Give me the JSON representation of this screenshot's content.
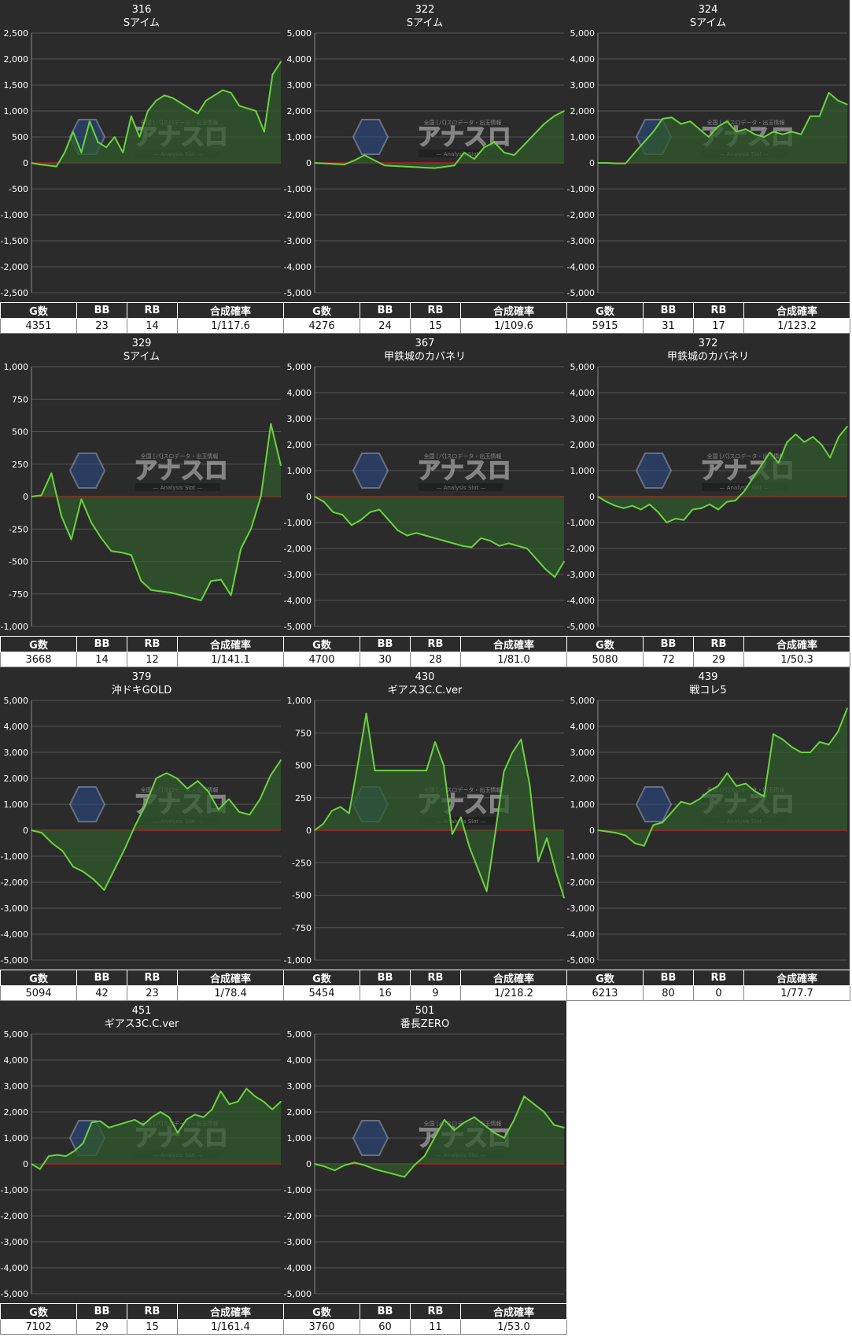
{
  "colors": {
    "background": "#2b2b2b",
    "grid": "#555555",
    "zero_line": "#cc2222",
    "series_line": "#6ad33e",
    "fill": "#2f5a2c"
  },
  "watermark": {
    "icon": "hexagon-logo-icon",
    "text": "アナスロ",
    "sub": "— Analysis Slot —",
    "tagline": "全国 [パ]スロデータ・出玉情報"
  },
  "stats_headers": [
    "G数",
    "BB",
    "RB",
    "合成確率"
  ],
  "machines": [
    {
      "number": "316",
      "name": "Sアイム",
      "games": "4351",
      "bb": "23",
      "rb": "14",
      "rate": "1/117.6",
      "chart_data": {
        "type": "area",
        "ylim": [
          -2500,
          2500
        ],
        "yticks": [
          2500,
          2000,
          1500,
          1000,
          500,
          0,
          -500,
          -1000,
          -1500,
          -2000,
          -2500
        ],
        "tick_labels": [
          "2,500",
          "2,000",
          "1,500",
          "1,000",
          "500",
          "0",
          "-500",
          "-1,000",
          "-1,500",
          "-2,000",
          "-2,500"
        ],
        "y": [
          0,
          -30,
          -50,
          -70,
          200,
          600,
          200,
          800,
          400,
          300,
          500,
          200,
          900,
          500,
          1000,
          1200,
          1300,
          1250,
          1150,
          1050,
          950,
          1200,
          1300,
          1400,
          1350,
          1100,
          1050,
          1000,
          600,
          1700,
          1950
        ]
      }
    },
    {
      "number": "322",
      "name": "Sアイム",
      "games": "4276",
      "bb": "24",
      "rb": "15",
      "rate": "1/109.6",
      "chart_data": {
        "type": "area",
        "ylim": [
          -5000,
          5000
        ],
        "yticks": [
          5000,
          4000,
          3000,
          2000,
          1000,
          0,
          -1000,
          -2000,
          -3000,
          -4000,
          -5000
        ],
        "tick_labels": [
          "5,000",
          "4,000",
          "3,000",
          "2,000",
          "1,000",
          "0",
          "-1,000",
          "-2,000",
          "-3,000",
          "-4,000",
          "-5,000"
        ],
        "y": [
          0,
          -20,
          -40,
          -60,
          100,
          300,
          100,
          -100,
          -120,
          -140,
          -160,
          -180,
          -200,
          -150,
          -100,
          400,
          150,
          600,
          800,
          400,
          300,
          700,
          1100,
          1500,
          1800,
          2000
        ]
      }
    },
    {
      "number": "324",
      "name": "Sアイム",
      "games": "5915",
      "bb": "31",
      "rb": "17",
      "rate": "1/123.2",
      "chart_data": {
        "type": "area",
        "ylim": [
          -5000,
          5000
        ],
        "yticks": [
          5000,
          4000,
          3000,
          2000,
          1000,
          0,
          -1000,
          -2000,
          -3000,
          -4000,
          -5000
        ],
        "tick_labels": [
          "5,000",
          "4,000",
          "3,000",
          "2,000",
          "1,000",
          "0",
          "-1,000",
          "-2,000",
          "-3,000",
          "-4,000",
          "-5,000"
        ],
        "y": [
          0,
          0,
          -20,
          -20,
          400,
          800,
          1200,
          1700,
          1750,
          1500,
          1600,
          1300,
          1000,
          1400,
          1600,
          1200,
          1300,
          1100,
          1000,
          1200,
          1100,
          1200,
          1100,
          1800,
          1800,
          2700,
          2400,
          2250
        ]
      }
    },
    {
      "number": "329",
      "name": "Sアイム",
      "games": "3668",
      "bb": "14",
      "rb": "12",
      "rate": "1/141.1",
      "chart_data": {
        "type": "area",
        "ylim": [
          -1000,
          1000
        ],
        "yticks": [
          1000,
          750,
          500,
          250,
          0,
          -250,
          -500,
          -750,
          -1000
        ],
        "tick_labels": [
          "1,000",
          "750",
          "500",
          "250",
          "0",
          "-250",
          "-500",
          "-750",
          "-1,000"
        ],
        "y": [
          0,
          10,
          180,
          -150,
          -330,
          -20,
          -200,
          -320,
          -420,
          -430,
          -450,
          -650,
          -720,
          -730,
          -740,
          -760,
          -780,
          -800,
          -650,
          -640,
          -760,
          -400,
          -250,
          0,
          560,
          240
        ]
      }
    },
    {
      "number": "367",
      "name": "甲鉄城のカバネリ",
      "games": "4700",
      "bb": "30",
      "rb": "28",
      "rate": "1/81.0",
      "chart_data": {
        "type": "area",
        "ylim": [
          -5000,
          5000
        ],
        "yticks": [
          5000,
          4000,
          3000,
          2000,
          1000,
          0,
          -1000,
          -2000,
          -3000,
          -4000,
          -5000
        ],
        "tick_labels": [
          "5,000",
          "4,000",
          "3,000",
          "2,000",
          "1,000",
          "0",
          "-1,000",
          "-2,000",
          "-3,000",
          "-4,000",
          "-5,000"
        ],
        "y": [
          0,
          -200,
          -600,
          -700,
          -1100,
          -900,
          -600,
          -500,
          -900,
          -1300,
          -1500,
          -1400,
          -1500,
          -1600,
          -1700,
          -1800,
          -1900,
          -1950,
          -1600,
          -1700,
          -1900,
          -1800,
          -1900,
          -2000,
          -2400,
          -2800,
          -3100,
          -2500
        ]
      }
    },
    {
      "number": "372",
      "name": "甲鉄城のカバネリ",
      "games": "5080",
      "bb": "72",
      "rb": "29",
      "rate": "1/50.3",
      "chart_data": {
        "type": "area",
        "ylim": [
          -5000,
          5000
        ],
        "yticks": [
          5000,
          4000,
          3000,
          2000,
          1000,
          0,
          -1000,
          -2000,
          -3000,
          -4000,
          -5000
        ],
        "tick_labels": [
          "5,000",
          "4,000",
          "3,000",
          "2,000",
          "1,000",
          "0",
          "-1,000",
          "-2,000",
          "-3,000",
          "-4,000",
          "-5,000"
        ],
        "y": [
          0,
          -200,
          -350,
          -450,
          -350,
          -500,
          -300,
          -600,
          -1000,
          -850,
          -900,
          -500,
          -450,
          -300,
          -500,
          -200,
          -150,
          200,
          700,
          1200,
          1700,
          1300,
          2100,
          2400,
          2100,
          2300,
          2000,
          1500,
          2300,
          2700
        ]
      }
    },
    {
      "number": "379",
      "name": "沖ドキGOLD",
      "games": "5094",
      "bb": "42",
      "rb": "23",
      "rate": "1/78.4",
      "chart_data": {
        "type": "area",
        "ylim": [
          -5000,
          5000
        ],
        "yticks": [
          5000,
          4000,
          3000,
          2000,
          1000,
          0,
          -1000,
          -2000,
          -3000,
          -4000,
          -5000
        ],
        "tick_labels": [
          "5,000",
          "4,000",
          "3,000",
          "2,000",
          "1,000",
          "0",
          "-1,000",
          "-2,000",
          "-3,000",
          "-4,000",
          "-5,000"
        ],
        "y": [
          0,
          -100,
          -500,
          -800,
          -1400,
          -1600,
          -1900,
          -2300,
          -1500,
          -700,
          200,
          1000,
          2000,
          2200,
          2000,
          1600,
          1900,
          1500,
          800,
          1200,
          700,
          600,
          1200,
          2100,
          2700
        ]
      }
    },
    {
      "number": "430",
      "name": "ギアス3C.C.ver",
      "games": "5454",
      "bb": "16",
      "rb": "9",
      "rate": "1/218.2",
      "chart_data": {
        "type": "area",
        "ylim": [
          -1000,
          1000
        ],
        "yticks": [
          1000,
          750,
          500,
          250,
          0,
          -250,
          -500,
          -750,
          -1000
        ],
        "tick_labels": [
          "1,000",
          "750",
          "500",
          "250",
          "0",
          "-250",
          "-500",
          "-750",
          "-1,000"
        ],
        "y": [
          0,
          50,
          150,
          180,
          130,
          500,
          900,
          460,
          460,
          460,
          460,
          460,
          460,
          460,
          680,
          500,
          -30,
          100,
          -130,
          -300,
          -470,
          -20,
          450,
          600,
          700,
          350,
          -240,
          -60,
          -310,
          -520
        ]
      }
    },
    {
      "number": "439",
      "name": "戦コレ5",
      "games": "6213",
      "bb": "80",
      "rb": "0",
      "rate": "1/77.7",
      "chart_data": {
        "type": "area",
        "ylim": [
          -5000,
          5000
        ],
        "yticks": [
          5000,
          4000,
          3000,
          2000,
          1000,
          0,
          -1000,
          -2000,
          -3000,
          -4000,
          -5000
        ],
        "tick_labels": [
          "5,000",
          "4,000",
          "3,000",
          "2,000",
          "1,000",
          "0",
          "-1,000",
          "-2,000",
          "-3,000",
          "-4,000",
          "-5,000"
        ],
        "y": [
          0,
          -50,
          -100,
          -200,
          -500,
          -600,
          200,
          300,
          700,
          1100,
          1000,
          1200,
          1500,
          1700,
          2200,
          1700,
          1800,
          1500,
          1300,
          3700,
          3500,
          3200,
          3000,
          3000,
          3400,
          3300,
          3800,
          4700
        ]
      }
    },
    {
      "number": "451",
      "name": "ギアス3C.C.ver",
      "games": "7102",
      "bb": "29",
      "rb": "15",
      "rate": "1/161.4",
      "chart_data": {
        "type": "area",
        "ylim": [
          -5000,
          5000
        ],
        "yticks": [
          5000,
          4000,
          3000,
          2000,
          1000,
          0,
          -1000,
          -2000,
          -3000,
          -4000,
          -5000
        ],
        "tick_labels": [
          "5,000",
          "4,000",
          "3,000",
          "2,000",
          "1,000",
          "0",
          "-1,000",
          "-2,000",
          "-3,000",
          "-4,000",
          "-5,000"
        ],
        "y": [
          0,
          -200,
          300,
          350,
          300,
          500,
          800,
          1600,
          1650,
          1400,
          1500,
          1600,
          1700,
          1500,
          1800,
          2000,
          1800,
          1200,
          1700,
          1900,
          1800,
          2100,
          2800,
          2300,
          2400,
          2900,
          2600,
          2400,
          2100,
          2400
        ]
      }
    },
    {
      "number": "501",
      "name": "番長ZERO",
      "games": "3760",
      "bb": "60",
      "rb": "11",
      "rate": "1/53.0",
      "chart_data": {
        "type": "area",
        "ylim": [
          -5000,
          5000
        ],
        "yticks": [
          5000,
          4000,
          3000,
          2000,
          1000,
          0,
          -1000,
          -2000,
          -3000,
          -4000,
          -5000
        ],
        "tick_labels": [
          "5,000",
          "4,000",
          "3,000",
          "2,000",
          "1,000",
          "0",
          "-1,000",
          "-2,000",
          "-3,000",
          "-4,000",
          "-5,000"
        ],
        "y": [
          0,
          -100,
          -250,
          -50,
          50,
          -50,
          -200,
          -300,
          -400,
          -500,
          -50,
          300,
          1000,
          1700,
          1300,
          1600,
          1800,
          1500,
          1200,
          1000,
          1700,
          2600,
          2300,
          2000,
          1500,
          1400
        ]
      }
    }
  ]
}
